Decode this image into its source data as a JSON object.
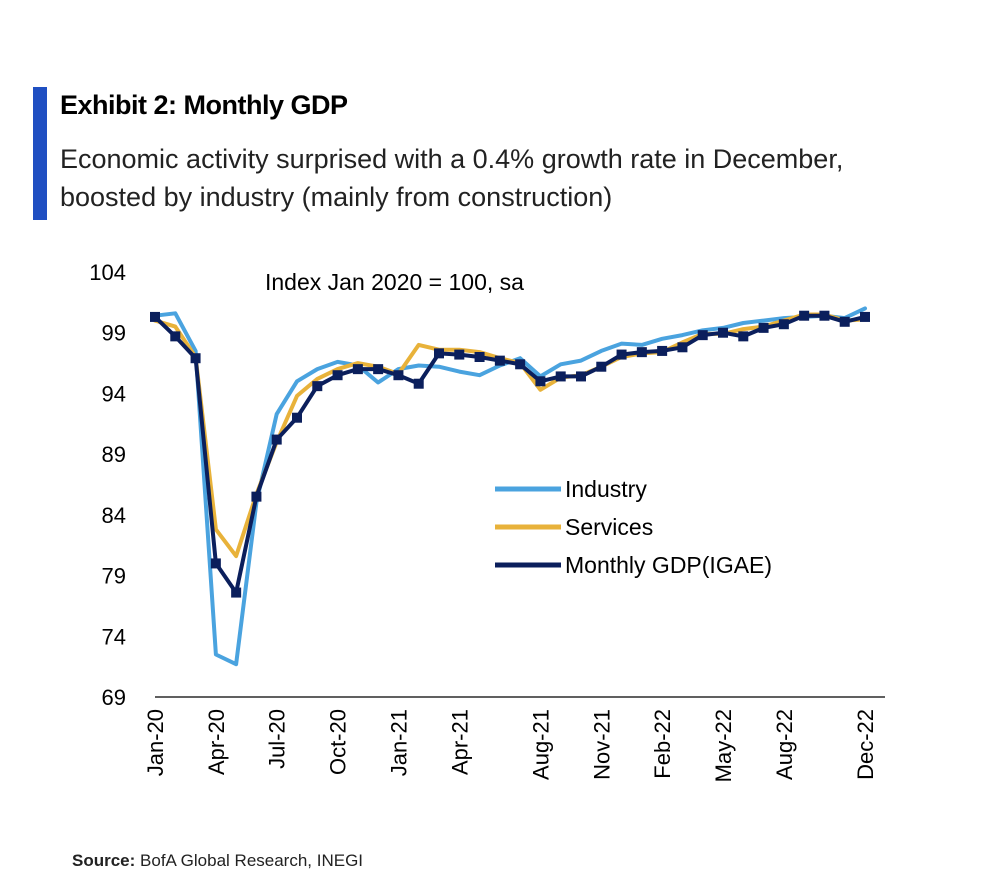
{
  "header": {
    "title": "Exhibit 2: Monthly GDP",
    "subtitle_line1": "Economic activity surprised with a 0.4% growth rate in December,",
    "subtitle_line2": "boosted by industry (mainly from construction)"
  },
  "footer": {
    "source_label": "Source:",
    "source_text": "BofA Global Research, INEGI"
  },
  "colors": {
    "accent": "#1f4fc2",
    "industry": "#4aa3df",
    "services": "#e8b23a",
    "gdp": "#0b1f5c"
  },
  "chart_data": {
    "type": "line",
    "annotation": "Index Jan 2020 = 100, sa",
    "ylim": [
      69,
      104
    ],
    "yticks": [
      69,
      74,
      79,
      84,
      89,
      94,
      99,
      104
    ],
    "xtick_labels": [
      "Jan-20",
      "Apr-20",
      "Jul-20",
      "Oct-20",
      "Jan-21",
      "Apr-21",
      "Aug-21",
      "Nov-21",
      "Feb-22",
      "May-22",
      "Aug-22",
      "Dec-22"
    ],
    "xtick_index": [
      0,
      3,
      6,
      9,
      12,
      15,
      19,
      22,
      25,
      28,
      31,
      35
    ],
    "categories": [
      "Jan-20",
      "Feb-20",
      "Mar-20",
      "Apr-20",
      "May-20",
      "Jun-20",
      "Jul-20",
      "Aug-20",
      "Sep-20",
      "Oct-20",
      "Nov-20",
      "Dec-20",
      "Jan-21",
      "Feb-21",
      "Mar-21",
      "Apr-21",
      "May-21",
      "Jun-21",
      "Jul-21",
      "Aug-21",
      "Sep-21",
      "Oct-21",
      "Nov-21",
      "Dec-21",
      "Jan-22",
      "Feb-22",
      "Mar-22",
      "Apr-22",
      "May-22",
      "Jun-22",
      "Jul-22",
      "Aug-22",
      "Sep-22",
      "Oct-22",
      "Nov-22",
      "Dec-22"
    ],
    "legend_position": "center-right",
    "grid": false,
    "series": [
      {
        "name": "Industry",
        "color": "#4aa3df",
        "markers": false,
        "values": [
          100.4,
          100.6,
          97.5,
          72.5,
          71.7,
          85.0,
          92.3,
          95.0,
          96.0,
          96.6,
          96.3,
          94.9,
          96.0,
          96.3,
          96.2,
          95.8,
          95.5,
          96.3,
          96.9,
          95.4,
          96.4,
          96.7,
          97.5,
          98.1,
          98.0,
          98.5,
          98.8,
          99.2,
          99.4,
          99.8,
          100.0,
          100.2,
          100.3,
          100.4,
          100.2,
          101.0
        ]
      },
      {
        "name": "Services",
        "color": "#e8b23a",
        "markers": false,
        "values": [
          100.0,
          99.5,
          97.0,
          82.8,
          80.6,
          85.7,
          90.0,
          93.8,
          95.2,
          96.0,
          96.5,
          96.2,
          95.6,
          98.0,
          97.6,
          97.6,
          97.4,
          96.9,
          96.5,
          94.3,
          95.3,
          95.5,
          96.2,
          97.0,
          97.3,
          97.4,
          98.2,
          98.9,
          98.9,
          99.3,
          99.5,
          100.0,
          100.5,
          100.5,
          100.0,
          100.1
        ]
      },
      {
        "name": "Monthly  GDP(IGAE)",
        "color": "#0b1f5c",
        "markers": true,
        "values": [
          100.3,
          98.7,
          96.9,
          80.0,
          77.6,
          85.5,
          90.2,
          92.0,
          94.6,
          95.5,
          96.0,
          96.0,
          95.5,
          94.8,
          97.3,
          97.2,
          97.0,
          96.7,
          96.4,
          95.0,
          95.4,
          95.4,
          96.2,
          97.2,
          97.4,
          97.5,
          97.8,
          98.8,
          99.0,
          98.7,
          99.4,
          99.7,
          100.4,
          100.4,
          99.9,
          100.3
        ]
      }
    ]
  }
}
